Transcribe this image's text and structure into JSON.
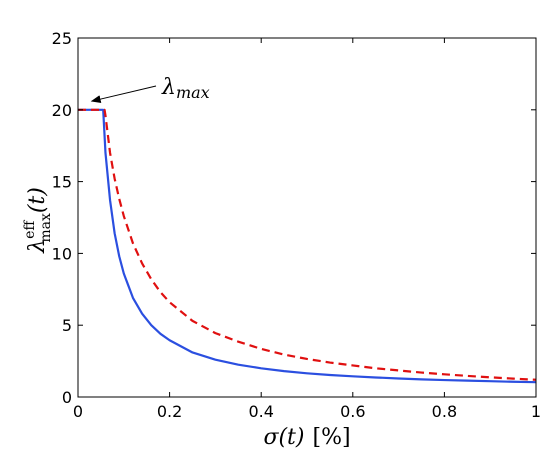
{
  "chart_data": {
    "type": "line",
    "title": "",
    "xlabel": {
      "symbol": "σ",
      "arg": "(t)",
      "unit": "[%]"
    },
    "ylabel": {
      "symbol": "λ",
      "sup": "eff",
      "sub": "max",
      "arg": "(t)"
    },
    "xlim": [
      0,
      1
    ],
    "ylim": [
      0,
      25
    ],
    "x_ticks": [
      0,
      0.2,
      0.4,
      0.6,
      0.8,
      1
    ],
    "x_tick_labels": [
      "0",
      "0.2",
      "0.4",
      "0.6",
      "0.8",
      "1"
    ],
    "y_ticks": [
      0,
      5,
      10,
      15,
      20,
      25
    ],
    "y_tick_labels": [
      "0",
      "5",
      "10",
      "15",
      "20",
      "25"
    ],
    "grid": false,
    "series": [
      {
        "style": "solid",
        "color": "#2b4fe0",
        "points": [
          [
            0,
            20
          ],
          [
            0.055,
            20
          ],
          [
            0.06,
            17.0
          ],
          [
            0.07,
            13.7
          ],
          [
            0.08,
            11.4
          ],
          [
            0.09,
            9.8
          ],
          [
            0.1,
            8.6
          ],
          [
            0.12,
            6.9
          ],
          [
            0.14,
            5.8
          ],
          [
            0.16,
            5.0
          ],
          [
            0.18,
            4.4
          ],
          [
            0.2,
            3.95
          ],
          [
            0.25,
            3.1
          ],
          [
            0.3,
            2.6
          ],
          [
            0.35,
            2.25
          ],
          [
            0.4,
            2.0
          ],
          [
            0.45,
            1.8
          ],
          [
            0.5,
            1.65
          ],
          [
            0.55,
            1.53
          ],
          [
            0.6,
            1.44
          ],
          [
            0.65,
            1.36
          ],
          [
            0.7,
            1.29
          ],
          [
            0.75,
            1.23
          ],
          [
            0.8,
            1.18
          ],
          [
            0.85,
            1.14
          ],
          [
            0.9,
            1.1
          ],
          [
            0.95,
            1.06
          ],
          [
            1.0,
            1.03
          ]
        ]
      },
      {
        "style": "dashed",
        "color": "#e01010",
        "points": [
          [
            0,
            20
          ],
          [
            0.058,
            20
          ],
          [
            0.06,
            19.6
          ],
          [
            0.07,
            17.0
          ],
          [
            0.08,
            15.2
          ],
          [
            0.09,
            13.8
          ],
          [
            0.1,
            12.6
          ],
          [
            0.12,
            10.7
          ],
          [
            0.14,
            9.3
          ],
          [
            0.16,
            8.2
          ],
          [
            0.18,
            7.3
          ],
          [
            0.2,
            6.6
          ],
          [
            0.25,
            5.3
          ],
          [
            0.3,
            4.45
          ],
          [
            0.35,
            3.85
          ],
          [
            0.4,
            3.35
          ],
          [
            0.45,
            2.95
          ],
          [
            0.5,
            2.65
          ],
          [
            0.55,
            2.4
          ],
          [
            0.6,
            2.2
          ],
          [
            0.65,
            2.0
          ],
          [
            0.7,
            1.85
          ],
          [
            0.75,
            1.7
          ],
          [
            0.8,
            1.58
          ],
          [
            0.85,
            1.47
          ],
          [
            0.9,
            1.37
          ],
          [
            0.95,
            1.28
          ],
          [
            1.0,
            1.2
          ]
        ]
      }
    ],
    "annotation": {
      "symbol": "λ",
      "sub": "max",
      "arrow_to": [
        0.03,
        20.6
      ]
    }
  }
}
